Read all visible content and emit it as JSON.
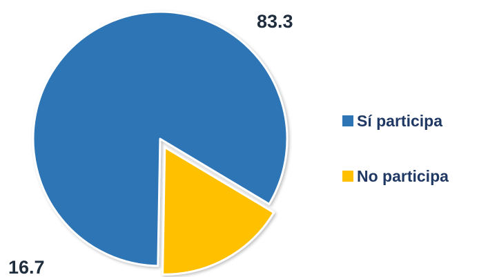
{
  "chart_data": {
    "type": "pie",
    "title": "",
    "slices": [
      {
        "name": "Sí participa",
        "value": 83.3,
        "color": "#2e75b6",
        "exploded": false
      },
      {
        "name": "No participa",
        "value": 16.7,
        "color": "#ffc000",
        "exploded": true
      }
    ],
    "data_labels": [
      "83.3",
      "16.7"
    ],
    "legend": {
      "placement": "right",
      "items": [
        {
          "label": "Sí participa",
          "color": "#2e75b6"
        },
        {
          "label": "No participa",
          "color": "#ffc000"
        }
      ]
    }
  }
}
